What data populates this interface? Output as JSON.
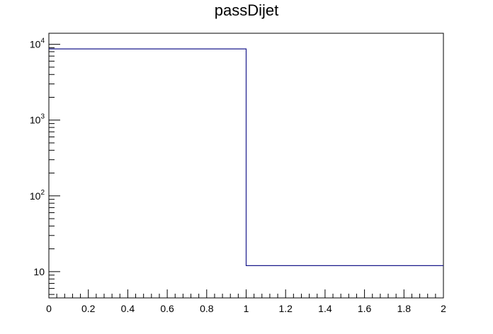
{
  "chart_data": {
    "type": "histogram",
    "title": "passDijet",
    "xlabel": "",
    "ylabel": "",
    "x_scale": "linear",
    "y_scale": "log",
    "xlim": [
      0,
      2
    ],
    "ylim": [
      4.5,
      14000
    ],
    "bins": [
      {
        "x_low": 0,
        "x_high": 1,
        "value": 8700
      },
      {
        "x_low": 1,
        "x_high": 2,
        "value": 12
      }
    ],
    "x_ticks": [
      "0",
      "0.2",
      "0.4",
      "0.6",
      "0.8",
      "1",
      "1.2",
      "1.4",
      "1.6",
      "1.8",
      "2"
    ],
    "x_tick_values": [
      0,
      0.2,
      0.4,
      0.6,
      0.8,
      1,
      1.2,
      1.4,
      1.6,
      1.8,
      2
    ],
    "y_ticks": [
      {
        "value": 10,
        "base": "10",
        "exp": ""
      },
      {
        "value": 100,
        "base": "10",
        "exp": "2"
      },
      {
        "value": 1000,
        "base": "10",
        "exp": "3"
      },
      {
        "value": 10000,
        "base": "10",
        "exp": "4"
      }
    ],
    "line_color": "#1a1a8c",
    "grid": false,
    "legend": "none"
  }
}
